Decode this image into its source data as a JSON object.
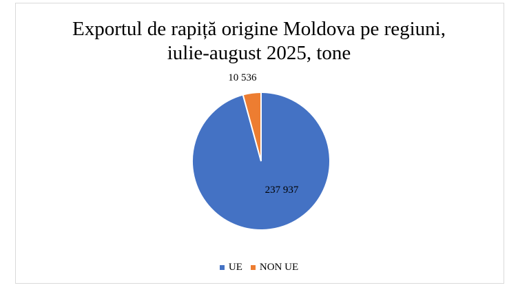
{
  "chart_data": {
    "type": "pie",
    "title_lines": [
      "Exportul de rapiță origine Moldova pe regiuni,",
      "iulie-august 2025, tone"
    ],
    "categories": [
      "UE",
      "NON UE"
    ],
    "values": [
      237937,
      10536
    ],
    "data_labels": [
      "237 937",
      "10 536"
    ],
    "colors": [
      "#4472C4",
      "#ED7D31"
    ],
    "legend_position": "bottom"
  }
}
